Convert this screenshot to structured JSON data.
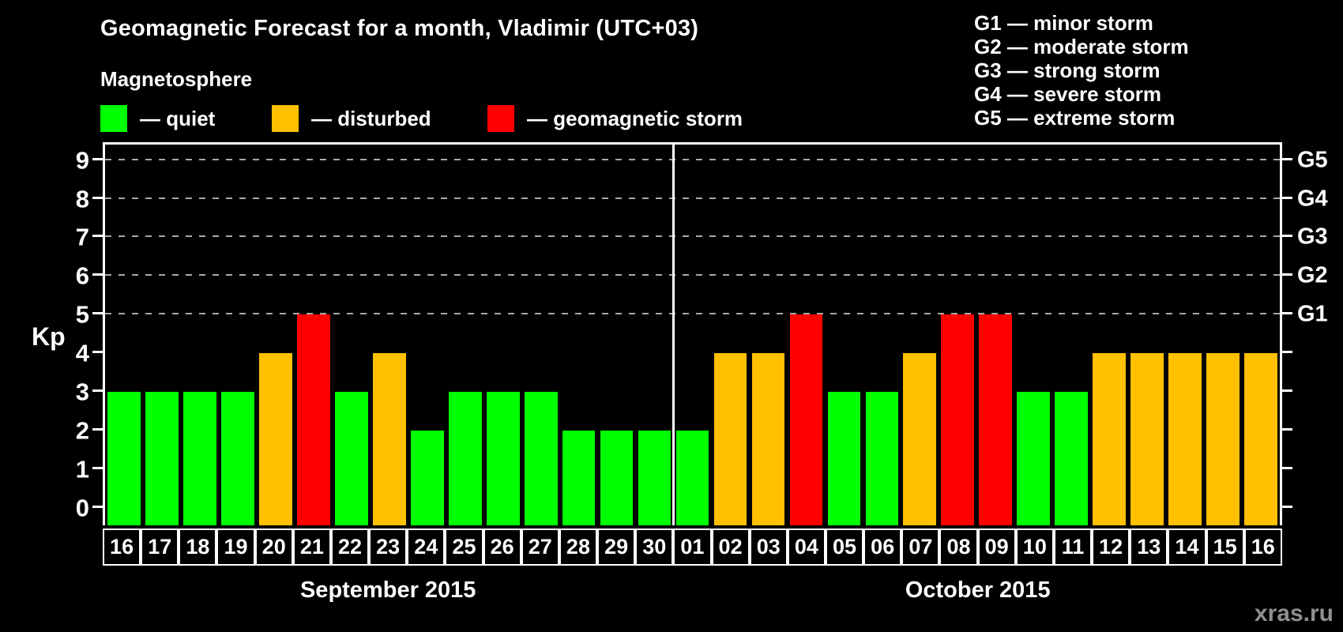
{
  "title": "Geomagnetic Forecast for a month, Vladimir (UTC+03)",
  "legend": {
    "heading": "Magnetosphere",
    "items": [
      {
        "name": "quiet",
        "label": "— quiet",
        "color": "#00ff00"
      },
      {
        "name": "disturbed",
        "label": "— disturbed",
        "color": "#ffc000"
      },
      {
        "name": "storm",
        "label": "— geomagnetic storm",
        "color": "#ff0000"
      }
    ]
  },
  "g_scale_legend": [
    "G1 — minor storm",
    "G2 — moderate storm",
    "G3 — strong storm",
    "G4 — severe storm",
    "G5 — extreme storm"
  ],
  "watermark": "xras.ru",
  "chart_data": {
    "type": "bar",
    "ylabel": "Kp",
    "ylim": [
      0,
      9
    ],
    "y_ticks": [
      0,
      1,
      2,
      3,
      4,
      5,
      6,
      7,
      8,
      9
    ],
    "grid_levels": [
      5,
      6,
      7,
      8,
      9
    ],
    "grid_style": "dashed",
    "right_axis_labels": [
      {
        "kp": 5,
        "label": "G1"
      },
      {
        "kp": 6,
        "label": "G2"
      },
      {
        "kp": 7,
        "label": "G3"
      },
      {
        "kp": 8,
        "label": "G4"
      },
      {
        "kp": 9,
        "label": "G5"
      }
    ],
    "sections": [
      {
        "label": "September 2015",
        "days": [
          {
            "day": "16",
            "kp": 3,
            "status": "quiet"
          },
          {
            "day": "17",
            "kp": 3,
            "status": "quiet"
          },
          {
            "day": "18",
            "kp": 3,
            "status": "quiet"
          },
          {
            "day": "19",
            "kp": 3,
            "status": "quiet"
          },
          {
            "day": "20",
            "kp": 4,
            "status": "disturbed"
          },
          {
            "day": "21",
            "kp": 5,
            "status": "storm"
          },
          {
            "day": "22",
            "kp": 3,
            "status": "quiet"
          },
          {
            "day": "23",
            "kp": 4,
            "status": "disturbed"
          },
          {
            "day": "24",
            "kp": 2,
            "status": "quiet"
          },
          {
            "day": "25",
            "kp": 3,
            "status": "quiet"
          },
          {
            "day": "26",
            "kp": 3,
            "status": "quiet"
          },
          {
            "day": "27",
            "kp": 3,
            "status": "quiet"
          },
          {
            "day": "28",
            "kp": 2,
            "status": "quiet"
          },
          {
            "day": "29",
            "kp": 2,
            "status": "quiet"
          },
          {
            "day": "30",
            "kp": 2,
            "status": "quiet"
          }
        ]
      },
      {
        "label": "October 2015",
        "days": [
          {
            "day": "01",
            "kp": 2,
            "status": "quiet"
          },
          {
            "day": "02",
            "kp": 4,
            "status": "disturbed"
          },
          {
            "day": "03",
            "kp": 4,
            "status": "disturbed"
          },
          {
            "day": "04",
            "kp": 5,
            "status": "storm"
          },
          {
            "day": "05",
            "kp": 3,
            "status": "quiet"
          },
          {
            "day": "06",
            "kp": 3,
            "status": "quiet"
          },
          {
            "day": "07",
            "kp": 4,
            "status": "disturbed"
          },
          {
            "day": "08",
            "kp": 5,
            "status": "storm"
          },
          {
            "day": "09",
            "kp": 5,
            "status": "storm"
          },
          {
            "day": "10",
            "kp": 3,
            "status": "quiet"
          },
          {
            "day": "11",
            "kp": 3,
            "status": "quiet"
          },
          {
            "day": "12",
            "kp": 4,
            "status": "disturbed"
          },
          {
            "day": "13",
            "kp": 4,
            "status": "disturbed"
          },
          {
            "day": "14",
            "kp": 4,
            "status": "disturbed"
          },
          {
            "day": "15",
            "kp": 4,
            "status": "disturbed"
          },
          {
            "day": "16",
            "kp": 4,
            "status": "disturbed"
          }
        ]
      }
    ]
  }
}
